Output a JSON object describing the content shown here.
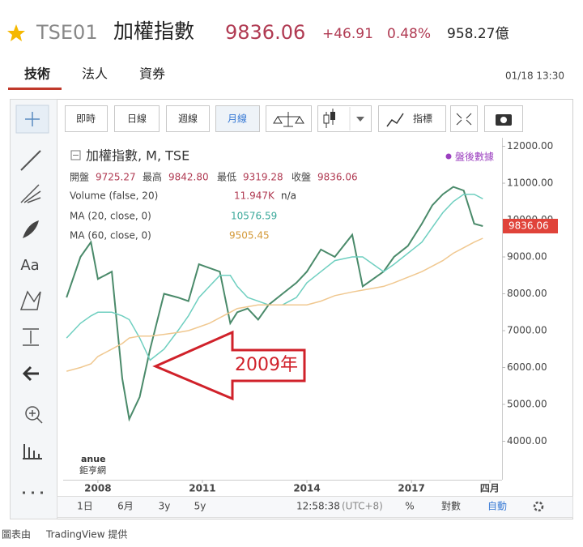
{
  "header": {
    "symbol": "TSE01",
    "name": "加權指數",
    "price": "9836.06",
    "change": "+46.91",
    "change_pct": "0.48%",
    "turnover": "958.27億"
  },
  "tabs": [
    "技術",
    "法人",
    "資券"
  ],
  "datetime": "01/18 13:30",
  "toolbar": [
    "即時",
    "日線",
    "週線",
    "月線",
    "指標"
  ],
  "sidebar": {
    "text_tool": "Aa"
  },
  "chart_data": {
    "type": "line",
    "title": "加權指數, M, TSE",
    "ohlc": {
      "labels": [
        "開盤",
        "最高",
        "最低",
        "收盤"
      ],
      "values": [
        "9725.27",
        "9842.80",
        "9319.28",
        "9836.06"
      ]
    },
    "volume_legend": {
      "label": "Volume (false, 20)",
      "value": "11.947K",
      "extra": "n/a"
    },
    "x": [
      2007.1,
      2007.5,
      2007.8,
      2008.0,
      2008.4,
      2008.7,
      2008.9,
      2009.2,
      2009.5,
      2009.9,
      2010.3,
      2010.6,
      2010.9,
      2011.2,
      2011.5,
      2011.8,
      2012.0,
      2012.3,
      2012.6,
      2012.9,
      2013.3,
      2013.7,
      2014.0,
      2014.4,
      2014.8,
      2015.3,
      2015.6,
      2015.9,
      2016.2,
      2016.5,
      2016.9,
      2017.3,
      2017.6,
      2017.9,
      2018.2,
      2018.5,
      2018.8,
      2019.05
    ],
    "series": [
      {
        "color": "#4a8a6a",
        "values": [
          7900,
          9000,
          9400,
          8400,
          8600,
          5700,
          4600,
          5200,
          6500,
          8000,
          7900,
          7800,
          8800,
          8700,
          8600,
          7200,
          7500,
          7600,
          7300,
          7700,
          8000,
          8300,
          8600,
          9200,
          9000,
          9600,
          8200,
          8400,
          8600,
          9000,
          9300,
          9900,
          10400,
          10700,
          10900,
          10800,
          9900,
          9836.06
        ]
      },
      {
        "name": "MA (20, close, 0)",
        "color": "#6fcfc0",
        "values": [
          6800,
          7200,
          7400,
          7500,
          7500,
          7400,
          7300,
          6800,
          6200,
          6500,
          7000,
          7400,
          7900,
          8200,
          8500,
          8500,
          8200,
          7900,
          7800,
          7700,
          7700,
          7900,
          8300,
          8600,
          8900,
          9000,
          9000,
          8800,
          8600,
          8800,
          9100,
          9400,
          9800,
          10200,
          10500,
          10700,
          10700,
          10576.59
        ]
      },
      {
        "name": "MA (60, close, 0)",
        "color": "#f0c890",
        "values": [
          5900,
          6000,
          6100,
          6300,
          6500,
          6650,
          6800,
          6850,
          6850,
          6900,
          6950,
          7000,
          7100,
          7200,
          7350,
          7500,
          7600,
          7650,
          7700,
          7700,
          7700,
          7700,
          7700,
          7800,
          7950,
          8050,
          8100,
          8150,
          8200,
          8300,
          8450,
          8600,
          8750,
          8900,
          9100,
          9250,
          9400,
          9505.45
        ]
      }
    ],
    "xlim": [
      2007.05,
      2019.6
    ],
    "xticks": [
      2008,
      2011,
      2014,
      2017,
      {
        "value": 2019.25,
        "label": "四月"
      }
    ],
    "ylim": [
      3000,
      12100
    ],
    "yticks": [
      {
        "value": 4000,
        "label": "4000.00"
      },
      {
        "value": 5000,
        "label": "5000.00"
      },
      {
        "value": 6000,
        "label": "6000.00"
      },
      {
        "value": 7000,
        "label": "7000.00"
      },
      {
        "value": 8000,
        "label": "8000.00"
      },
      {
        "value": 9000,
        "label": "9000.00"
      },
      {
        "value": 10000,
        "label": "10000.00"
      },
      {
        "value": 11000,
        "label": "11000.00"
      },
      {
        "value": 12000,
        "label": "12000.00"
      }
    ],
    "grid": false,
    "aftermarket": "盤後數據",
    "annotations": [
      {
        "text": "2009年"
      }
    ]
  },
  "watermark": {
    "brand": "anue",
    "name": "鉅亨網"
  },
  "range_buttons": [
    "1日",
    "6月",
    "3y",
    "5y"
  ],
  "status": {
    "time": "12:58:38",
    "timezone": "(UTC+8)",
    "percent": "%",
    "log": "對數",
    "auto": "自動"
  },
  "footer": {
    "prefix": "圖表由",
    "provider": "TradingView 提供"
  }
}
